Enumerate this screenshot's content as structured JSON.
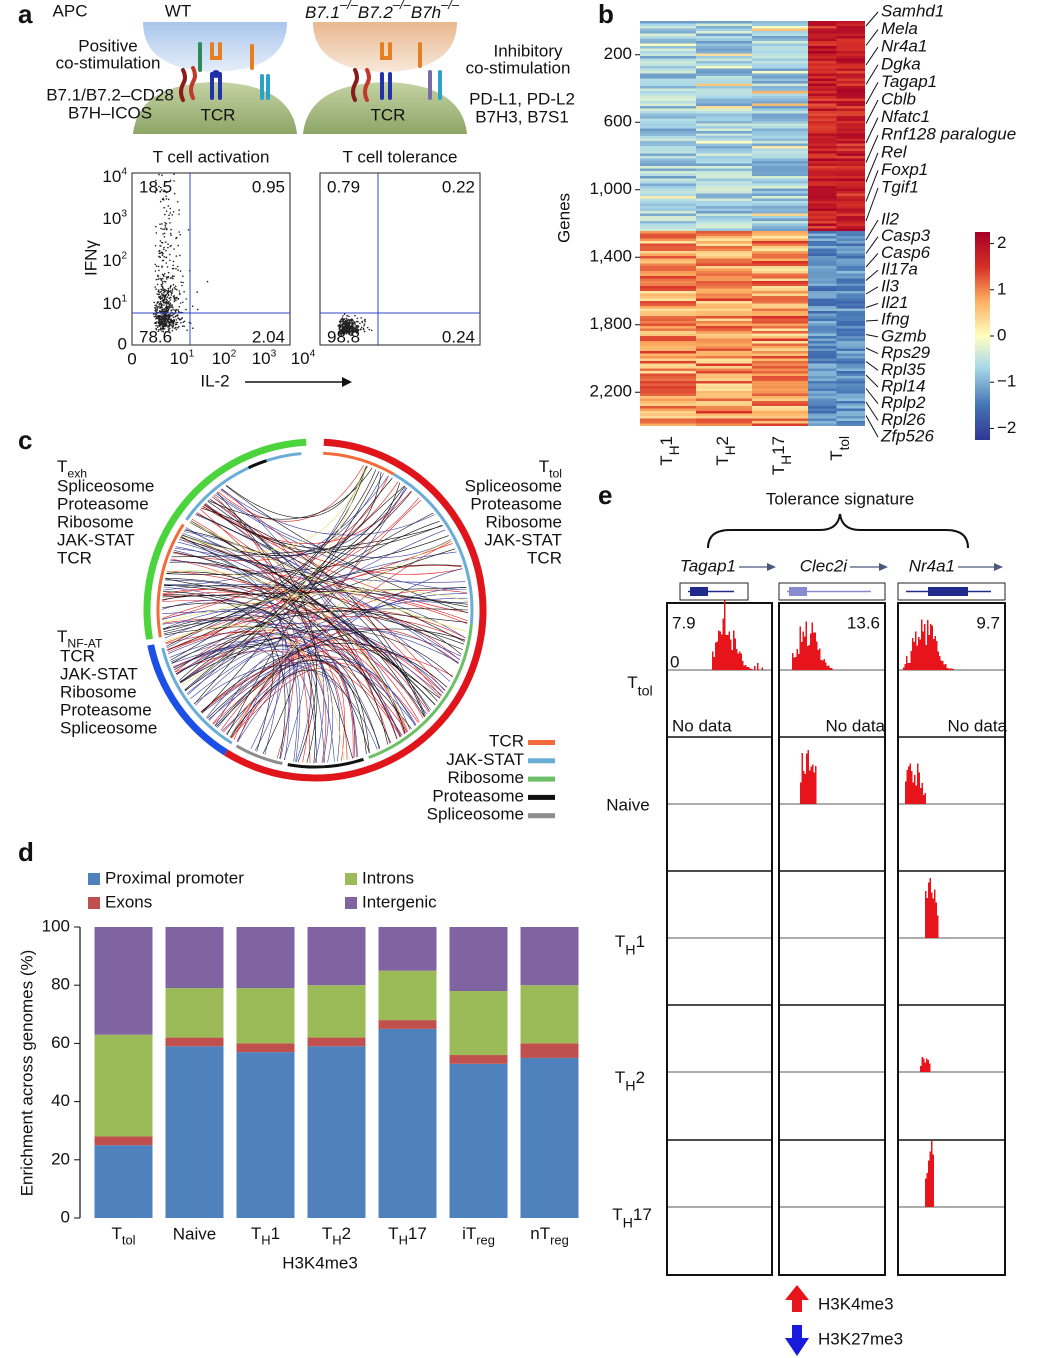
{
  "panel_labels": [
    "a",
    "b",
    "c",
    "d",
    "e"
  ],
  "panel_a": {
    "apc": "APC",
    "wt": "WT",
    "knockout": [
      {
        "t": "B7.1"
      },
      {
        "sup": "–/–"
      },
      {
        "t": "B7.2"
      },
      {
        "sup": "–/–"
      },
      {
        "t": "B7h"
      },
      {
        "sup": "–/–"
      }
    ],
    "positive": [
      "Positive",
      "co-stimulation"
    ],
    "inhibitory": [
      "Inhibitory",
      "co-stimulation"
    ],
    "left_ligands": [
      "B7.1/B7.2–CD28",
      "B7H–ICOS"
    ],
    "right_ligands": [
      "PD-L1, PD-L2",
      "B7H3, B7S1"
    ],
    "tcr": [
      "TCR",
      "TCR"
    ],
    "plots": [
      {
        "title": "T cell activation",
        "quadrants": [
          18.5,
          0.95,
          78.6,
          2.04
        ]
      },
      {
        "title": "T cell tolerance",
        "quadrants": [
          0.79,
          0.22,
          98.8,
          0.24
        ]
      }
    ],
    "y_label": "IFNγ",
    "x_label": "IL-2",
    "y_ticks": [
      [
        {
          "t": "10"
        },
        {
          "sup": "4"
        }
      ],
      [
        {
          "t": "10"
        },
        {
          "sup": "3"
        }
      ],
      [
        {
          "t": "10"
        },
        {
          "sup": "2"
        }
      ],
      [
        {
          "t": "10"
        },
        {
          "sup": "1"
        }
      ],
      "0"
    ],
    "x_ticks": [
      "0",
      [
        {
          "t": "10"
        },
        {
          "sup": "1"
        }
      ],
      [
        {
          "t": "10"
        },
        {
          "sup": "2"
        }
      ],
      [
        {
          "t": "10"
        },
        {
          "sup": "3"
        }
      ],
      [
        {
          "t": "10"
        },
        {
          "sup": "4"
        }
      ]
    ]
  },
  "panel_b": {
    "y_label": "Genes",
    "ylim": [
      0,
      2400
    ],
    "yticks": [
      200,
      600,
      {
        "value": 1000,
        "label": "1,000"
      },
      {
        "value": 1400,
        "label": "1,400"
      },
      {
        "value": 1800,
        "label": "1,800"
      },
      {
        "value": 2200,
        "label": "2,200"
      }
    ],
    "columns": [
      [
        {
          "t": "T"
        },
        {
          "sub": "H"
        },
        {
          "t": "1"
        }
      ],
      [
        {
          "t": "T"
        },
        {
          "sub": "H"
        },
        {
          "t": "2"
        }
      ],
      [
        {
          "t": "T"
        },
        {
          "sub": "H"
        },
        {
          "t": "17"
        }
      ],
      [
        {
          "t": "T"
        },
        {
          "sub": "tol"
        }
      ]
    ],
    "genes_top": [
      {
        "name": "Samhd1",
        "color": "#1a1a1a"
      },
      {
        "name": "Mela",
        "color": "#1a1a1a"
      },
      {
        "name": "Nr4a1",
        "color": "#1a1a1a"
      },
      {
        "name": "Dgka",
        "color": "#e8141b"
      },
      {
        "name": "Tagap1",
        "color": "#e8141b"
      },
      {
        "name": "Cblb",
        "color": "#e8141b"
      },
      {
        "name": "Nfatc1",
        "color": "#e8141b"
      },
      {
        "name": "Rnf128 paralogue",
        "color": "#e8141b"
      },
      {
        "name": "Rel",
        "color": "#1a1a1a"
      },
      {
        "name": "Foxp1",
        "color": "#1a1a1a"
      },
      {
        "name": "Tgif1",
        "color": "#1a1a1a"
      }
    ],
    "genes_bottom": [
      {
        "name": "Il2",
        "color": "#f59a23"
      },
      {
        "name": "Casp3",
        "color": "#f59a23"
      },
      {
        "name": "Casp6",
        "color": "#f59a23"
      },
      {
        "name": "Il17a",
        "color": "#1a1a1a"
      },
      {
        "name": "Il3",
        "color": "#1a1a1a"
      },
      {
        "name": "Il21",
        "color": "#1a1a1a"
      },
      {
        "name": "Ifng",
        "color": "#1a1a1a"
      },
      {
        "name": "Gzmb",
        "color": "#1a1a1a"
      },
      {
        "name": "Rps29",
        "color": "#1a1adc"
      },
      {
        "name": "Rpl35",
        "color": "#1a1adc"
      },
      {
        "name": "Rpl14",
        "color": "#1a1adc"
      },
      {
        "name": "Rplp2",
        "color": "#1a1adc"
      },
      {
        "name": "Rpl26",
        "color": "#1a1adc"
      },
      {
        "name": "Zfp526",
        "color": "#1a1a1a"
      }
    ],
    "colorbar": {
      "lim": [
        -2.25,
        2.25
      ],
      "ticks": [
        2,
        1,
        0,
        {
          "value": -1,
          "label": "−1"
        },
        {
          "value": -2,
          "label": "−2"
        }
      ]
    }
  },
  "panel_c": {
    "groups": [
      {
        "label": [
          {
            "t": "T"
          },
          {
            "sub": "exh"
          }
        ],
        "items": [
          "Spliceosome",
          "Proteasome",
          "Ribosome",
          "JAK-STAT",
          "TCR"
        ]
      },
      {
        "label": [
          {
            "t": "T"
          },
          {
            "sub": "tol"
          }
        ],
        "items": [
          "Spliceosome",
          "Proteasome",
          "Ribosome",
          "JAK-STAT",
          "TCR"
        ]
      },
      {
        "label": [
          {
            "t": "T"
          },
          {
            "sub": "NF-AT"
          }
        ],
        "items": [
          "TCR",
          "JAK-STAT",
          "Ribosome",
          "Proteasome",
          "Spliceosome"
        ]
      }
    ],
    "legend": [
      {
        "name": "TCR",
        "color": "#f26b3a"
      },
      {
        "name": "JAK-STAT",
        "color": "#6aaed6"
      },
      {
        "name": "Ribosome",
        "color": "#6dbf67"
      },
      {
        "name": "Proteasome",
        "color": "#111111"
      },
      {
        "name": "Spliceosome",
        "color": "#8c8c8c"
      }
    ]
  },
  "chart_data": {
    "type": "stacked_bar",
    "x_label": "H3K4me3",
    "y_label": "Enrichment across genomes (%)",
    "categories": [
      [
        {
          "t": "T"
        },
        {
          "sub": "tol"
        }
      ],
      "Naive",
      [
        {
          "t": "T"
        },
        {
          "sub": "H"
        },
        {
          "t": "1"
        }
      ],
      [
        {
          "t": "T"
        },
        {
          "sub": "H"
        },
        {
          "t": "2"
        }
      ],
      [
        {
          "t": "T"
        },
        {
          "sub": "H"
        },
        {
          "t": "17"
        }
      ],
      [
        {
          "t": "iT"
        },
        {
          "sub": "reg"
        }
      ],
      [
        {
          "t": "nT"
        },
        {
          "sub": "reg"
        }
      ]
    ],
    "series": [
      {
        "name": "Proximal promoter",
        "color": "#4f81bd",
        "values": [
          25,
          59,
          57,
          59,
          65,
          53,
          55
        ]
      },
      {
        "name": "Exons",
        "color": "#c0504d",
        "values": [
          3,
          3,
          3,
          3,
          3,
          3,
          5
        ]
      },
      {
        "name": "Introns",
        "color": "#9bbb59",
        "values": [
          35,
          17,
          19,
          18,
          17,
          22,
          20
        ]
      },
      {
        "name": "Intergenic",
        "color": "#8064a2",
        "values": [
          37,
          21,
          21,
          20,
          15,
          22,
          20
        ]
      }
    ],
    "ylim": [
      0,
      100
    ],
    "yticks": [
      0,
      20,
      40,
      60,
      80,
      100
    ]
  },
  "panel_e": {
    "title": "Tolerance signature",
    "genes": [
      {
        "name": "Tagap1",
        "scale": 7.9
      },
      {
        "name": "Clec2i",
        "scale": 13.6
      },
      {
        "name": "Nr4a1",
        "scale": 9.7
      }
    ],
    "zero": "0",
    "no_data": [
      "No data",
      "No data",
      "No data"
    ],
    "rows": [
      [
        {
          "t": "T"
        },
        {
          "sub": "tol"
        }
      ],
      "Naive",
      [
        {
          "t": "T"
        },
        {
          "sub": "H"
        },
        {
          "t": "1"
        }
      ],
      [
        {
          "t": "T"
        },
        {
          "sub": "H"
        },
        {
          "t": "2"
        }
      ],
      [
        {
          "t": "T"
        },
        {
          "sub": "H"
        },
        {
          "t": "17"
        }
      ]
    ],
    "marks": [
      {
        "name": "H3K4me3",
        "color": "#e8141b"
      },
      {
        "name": "H3K27me3",
        "color": "#1a1adc"
      }
    ]
  }
}
